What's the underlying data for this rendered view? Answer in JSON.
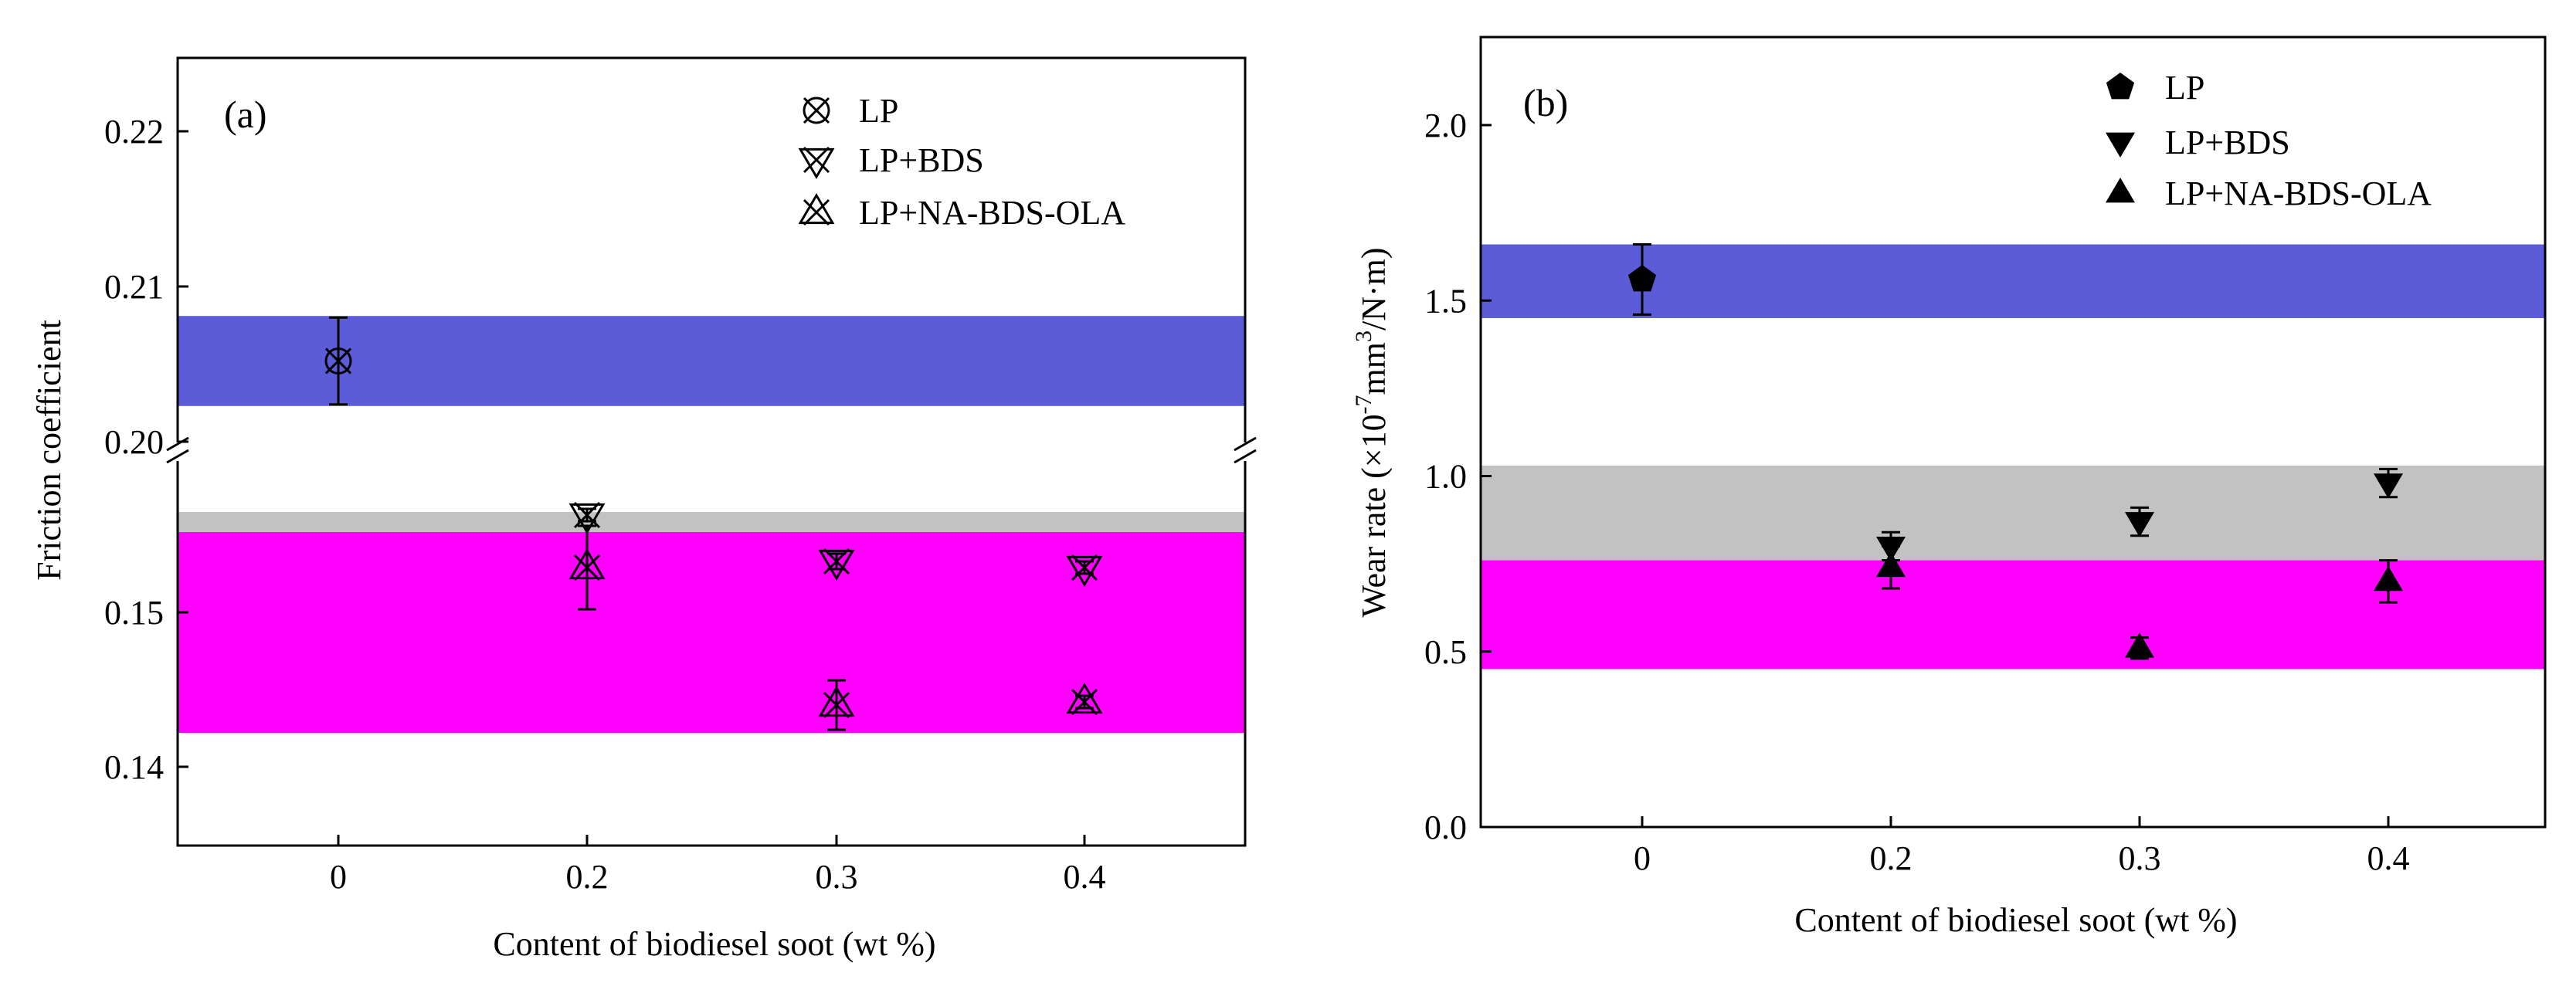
{
  "colors": {
    "blue_band": "#5c5cd8",
    "gray_band": "#c2c2c2",
    "magenta_band": "#ff00ff",
    "marker": "#000000"
  },
  "chart_data": [
    {
      "type": "scatter",
      "panel_label": "(a)",
      "xlabel": "Content of biodiesel soot (wt %)",
      "ylabel": "Friction coefficient",
      "categories": [
        "0",
        "0.2",
        "0.3",
        "0.4"
      ],
      "y_ticks_upper": [
        "0.20",
        "0.21",
        "0.22"
      ],
      "y_ticks_lower": [
        "0.14",
        "0.15"
      ],
      "ylim_upper": [
        0.1995,
        0.2255
      ],
      "ylim_lower": [
        0.1365,
        0.158
      ],
      "axis_break": true,
      "legend_position": "top-right",
      "bands": [
        {
          "color": "blue",
          "ylim": [
            0.2023,
            0.2081
          ]
        },
        {
          "color": "gray",
          "ylim": [
            0.1517,
            0.1565
          ]
        },
        {
          "color": "magenta",
          "ylim": [
            0.1422,
            0.1552
          ]
        }
      ],
      "series": [
        {
          "name": "LP",
          "marker": "circle-x",
          "points": [
            {
              "x": "0",
              "y": 0.2052,
              "err": 0.0028
            }
          ]
        },
        {
          "name": "LP+BDS",
          "marker": "triangle-down-x",
          "points": [
            {
              "x": "0.2",
              "y": 0.1563,
              "err": 0.0004
            },
            {
              "x": "0.3",
              "y": 0.1533,
              "err": 0.0005
            },
            {
              "x": "0.4",
              "y": 0.1529,
              "err": 0.0004
            }
          ]
        },
        {
          "name": "LP+NA-BDS-OLA",
          "marker": "triangle-up-x",
          "points": [
            {
              "x": "0.2",
              "y": 0.1529,
              "err": 0.0027
            },
            {
              "x": "0.3",
              "y": 0.144,
              "err": 0.0016
            },
            {
              "x": "0.4",
              "y": 0.1442,
              "err": 0.0004
            }
          ]
        }
      ]
    },
    {
      "type": "scatter",
      "panel_label": "(b)",
      "xlabel": "Content of biodiesel soot (wt %)",
      "ylabel_parts": [
        "Wear rate (×10",
        "-7",
        "mm",
        "3",
        "/N·m)"
      ],
      "categories": [
        "0",
        "0.2",
        "0.3",
        "0.4"
      ],
      "y_ticks": [
        "0.0",
        "0.5",
        "1.0",
        "1.5",
        "2.0"
      ],
      "ylim": [
        0,
        2.25
      ],
      "legend_position": "top-right",
      "bands": [
        {
          "color": "blue",
          "ylim": [
            1.45,
            1.66
          ]
        },
        {
          "color": "gray",
          "ylim": [
            0.76,
            1.03
          ]
        },
        {
          "color": "magenta",
          "ylim": [
            0.45,
            0.76
          ]
        }
      ],
      "series": [
        {
          "name": "LP",
          "marker": "pentagon",
          "points": [
            {
              "x": "0",
              "y": 1.56,
              "err": 0.1
            }
          ]
        },
        {
          "name": "LP+BDS",
          "marker": "triangle-down",
          "points": [
            {
              "x": "0.2",
              "y": 0.8,
              "err": 0.04
            },
            {
              "x": "0.3",
              "y": 0.87,
              "err": 0.04
            },
            {
              "x": "0.4",
              "y": 0.98,
              "err": 0.04
            }
          ]
        },
        {
          "name": "LP+NA-BDS-OLA",
          "marker": "triangle-up",
          "points": [
            {
              "x": "0.2",
              "y": 0.74,
              "err": 0.06
            },
            {
              "x": "0.3",
              "y": 0.51,
              "err": 0.03
            },
            {
              "x": "0.4",
              "y": 0.7,
              "err": 0.06
            }
          ]
        }
      ]
    }
  ]
}
